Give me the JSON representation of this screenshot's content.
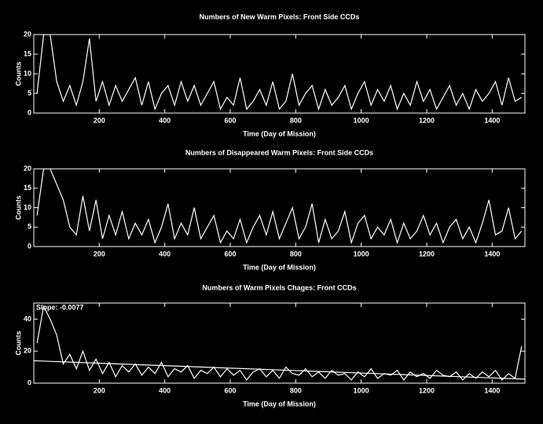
{
  "chart_data": [
    {
      "type": "line",
      "title": "Numbers of New Warm Pixels: Front Side CCDs",
      "xlabel": "Time (Day of Mission)",
      "ylabel": "Counts",
      "x": [
        10,
        30,
        50,
        70,
        90,
        110,
        130,
        150,
        170,
        190,
        210,
        230,
        250,
        270,
        290,
        310,
        330,
        350,
        370,
        390,
        410,
        430,
        450,
        470,
        490,
        510,
        530,
        550,
        570,
        590,
        610,
        630,
        650,
        670,
        690,
        710,
        730,
        750,
        770,
        790,
        810,
        830,
        850,
        870,
        890,
        910,
        930,
        950,
        970,
        990,
        1010,
        1030,
        1050,
        1070,
        1090,
        1110,
        1130,
        1150,
        1170,
        1190,
        1210,
        1230,
        1250,
        1270,
        1290,
        1310,
        1330,
        1350,
        1370,
        1390,
        1410,
        1430,
        1450,
        1470,
        1490
      ],
      "values": [
        5,
        20,
        20,
        8,
        3,
        7,
        2,
        8,
        19,
        3,
        8,
        2,
        7,
        3,
        6,
        9,
        2,
        8,
        1,
        5,
        7,
        2,
        8,
        3,
        7,
        2,
        5,
        8,
        1,
        4,
        2,
        9,
        1,
        3,
        6,
        2,
        8,
        1,
        3,
        10,
        2,
        5,
        7,
        1,
        6,
        2,
        4,
        7,
        1,
        5,
        8,
        2,
        6,
        3,
        7,
        1,
        5,
        2,
        8,
        3,
        6,
        1,
        4,
        7,
        2,
        5,
        1,
        6,
        3,
        5,
        8,
        2,
        9,
        3,
        4
      ],
      "color": "#ffffff",
      "xlim": [
        0,
        1500
      ],
      "ylim": [
        0,
        20
      ],
      "xticks": [
        200,
        400,
        600,
        800,
        1000,
        1200,
        1400
      ],
      "yticks": [
        0,
        5,
        10,
        15,
        20
      ]
    },
    {
      "type": "line",
      "title": "Numbers of Disappeared Warm Pixels: Front Side CCDs",
      "xlabel": "Time (Day of Mission)",
      "ylabel": "Counts",
      "x": [
        10,
        30,
        50,
        70,
        90,
        110,
        130,
        150,
        170,
        190,
        210,
        230,
        250,
        270,
        290,
        310,
        330,
        350,
        370,
        390,
        410,
        430,
        450,
        470,
        490,
        510,
        530,
        550,
        570,
        590,
        610,
        630,
        650,
        670,
        690,
        710,
        730,
        750,
        770,
        790,
        810,
        830,
        850,
        870,
        890,
        910,
        930,
        950,
        970,
        990,
        1010,
        1030,
        1050,
        1070,
        1090,
        1110,
        1130,
        1150,
        1170,
        1190,
        1210,
        1230,
        1250,
        1270,
        1290,
        1310,
        1330,
        1350,
        1370,
        1390,
        1410,
        1430,
        1450,
        1470,
        1490
      ],
      "values": [
        8,
        20,
        20,
        16,
        12,
        5,
        3,
        13,
        4,
        12,
        2,
        8,
        3,
        9,
        2,
        6,
        3,
        7,
        1,
        5,
        11,
        2,
        6,
        3,
        10,
        2,
        5,
        8,
        1,
        4,
        2,
        7,
        1,
        5,
        8,
        3,
        9,
        2,
        6,
        10,
        2,
        5,
        11,
        1,
        7,
        2,
        4,
        9,
        1,
        6,
        8,
        2,
        5,
        3,
        7,
        1,
        6,
        2,
        4,
        8,
        3,
        6,
        1,
        5,
        7,
        2,
        5,
        1,
        6,
        12,
        3,
        4,
        10,
        2,
        4
      ],
      "color": "#ffffff",
      "xlim": [
        0,
        1500
      ],
      "ylim": [
        0,
        20
      ],
      "xticks": [
        200,
        400,
        600,
        800,
        1000,
        1200,
        1400
      ],
      "yticks": [
        0,
        5,
        10,
        15,
        20
      ]
    },
    {
      "type": "line",
      "title": "Numbers of Warm Pixels Chages: Front CCDs",
      "xlabel": "Time (Day of Mission)",
      "ylabel": "Counts",
      "annotation": "Slope: -0.0077",
      "x": [
        10,
        30,
        50,
        70,
        90,
        110,
        130,
        150,
        170,
        190,
        210,
        230,
        250,
        270,
        290,
        310,
        330,
        350,
        370,
        390,
        410,
        430,
        450,
        470,
        490,
        510,
        530,
        550,
        570,
        590,
        610,
        630,
        650,
        670,
        690,
        710,
        730,
        750,
        770,
        790,
        810,
        830,
        850,
        870,
        890,
        910,
        930,
        950,
        970,
        990,
        1010,
        1030,
        1050,
        1070,
        1090,
        1110,
        1130,
        1150,
        1170,
        1190,
        1210,
        1230,
        1250,
        1270,
        1290,
        1310,
        1330,
        1350,
        1370,
        1390,
        1410,
        1430,
        1450,
        1470,
        1490
      ],
      "values": [
        25,
        48,
        40,
        30,
        12,
        18,
        9,
        20,
        8,
        15,
        6,
        13,
        4,
        11,
        7,
        12,
        5,
        10,
        6,
        13,
        4,
        9,
        7,
        11,
        3,
        8,
        6,
        10,
        4,
        9,
        5,
        8,
        2,
        7,
        9,
        4,
        8,
        3,
        10,
        6,
        5,
        9,
        4,
        7,
        3,
        8,
        5,
        6,
        2,
        7,
        4,
        9,
        3,
        6,
        5,
        8,
        2,
        7,
        4,
        6,
        3,
        8,
        5,
        4,
        7,
        2,
        6,
        3,
        7,
        4,
        8,
        2,
        6,
        3,
        23
      ],
      "fit": {
        "x": [
          0,
          1500
        ],
        "values": [
          14,
          2.5
        ]
      },
      "color": "#ffffff",
      "xlim": [
        0,
        1500
      ],
      "ylim": [
        0,
        50
      ],
      "xticks": [
        200,
        400,
        600,
        800,
        1000,
        1200,
        1400
      ],
      "yticks": [
        0,
        20,
        40
      ]
    }
  ]
}
